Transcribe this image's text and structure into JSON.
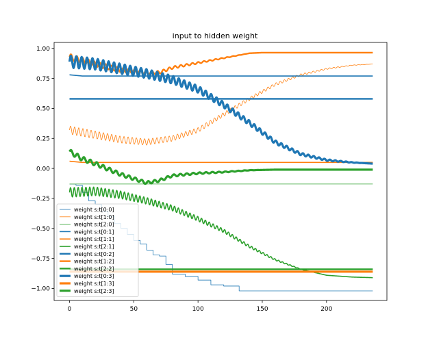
{
  "chart_data": {
    "type": "line",
    "title": "input to hidden weight",
    "xlabel": "",
    "ylabel": "",
    "xlim": [
      -12,
      247
    ],
    "ylim": [
      -1.1,
      1.05
    ],
    "xticks": [
      0,
      50,
      100,
      150,
      200
    ],
    "xtick_labels": [
      "0",
      "50",
      "100",
      "150",
      "200"
    ],
    "yticks": [
      -1.0,
      -0.75,
      -0.5,
      -0.25,
      0.0,
      0.25,
      0.5,
      0.75,
      1.0
    ],
    "ytick_labels": [
      "−1.00",
      "−0.75",
      "−0.50",
      "−0.25",
      "0.00",
      "0.25",
      "0.50",
      "0.75",
      "1.00"
    ],
    "grid": false,
    "legend_position": "lower-left",
    "colors": {
      "blue": "#1f77b4",
      "orange": "#ff7f0e",
      "green": "#2ca02c"
    },
    "series": [
      {
        "name": "weight s:t[0:0]",
        "color": "#1f77b4",
        "width": 0.8,
        "kind": "steps",
        "points": [
          [
            0,
            -0.13
          ],
          [
            5,
            -0.14
          ],
          [
            10,
            -0.2
          ],
          [
            15,
            -0.27
          ],
          [
            20,
            -0.3
          ],
          [
            25,
            -0.36
          ],
          [
            30,
            -0.4
          ],
          [
            35,
            -0.46
          ],
          [
            40,
            -0.5
          ],
          [
            45,
            -0.55
          ],
          [
            50,
            -0.6
          ],
          [
            55,
            -0.63
          ],
          [
            60,
            -0.68
          ],
          [
            65,
            -0.72
          ],
          [
            70,
            -0.73
          ],
          [
            75,
            -0.8
          ],
          [
            80,
            -0.88
          ],
          [
            90,
            -0.9
          ],
          [
            100,
            -0.93
          ],
          [
            110,
            -0.97
          ],
          [
            120,
            -0.98
          ],
          [
            132,
            -1.02
          ],
          [
            236,
            -1.02
          ]
        ]
      },
      {
        "name": "weight s:t[1:0]",
        "color": "#ff7f0e",
        "width": 0.8,
        "kind": "osc",
        "points": [
          [
            0,
            0.32
          ],
          [
            20,
            0.28
          ],
          [
            40,
            0.24
          ],
          [
            60,
            0.22
          ],
          [
            80,
            0.25
          ],
          [
            100,
            0.32
          ],
          [
            120,
            0.45
          ],
          [
            140,
            0.58
          ],
          [
            160,
            0.7
          ],
          [
            180,
            0.78
          ],
          [
            200,
            0.83
          ],
          [
            220,
            0.86
          ],
          [
            236,
            0.87
          ]
        ],
        "amp": 0.035,
        "period": 3.2,
        "damp_until": 236
      },
      {
        "name": "weight s:t[2:0]",
        "color": "#2ca02c",
        "width": 0.8,
        "kind": "line",
        "points": [
          [
            0,
            -0.13
          ],
          [
            236,
            -0.13
          ]
        ]
      },
      {
        "name": "weight s:t[0:1]",
        "color": "#1f77b4",
        "width": 1.6,
        "kind": "line",
        "points": [
          [
            0,
            0.78
          ],
          [
            10,
            0.77
          ],
          [
            236,
            0.77
          ]
        ]
      },
      {
        "name": "weight s:t[1:1]",
        "color": "#ff7f0e",
        "width": 1.6,
        "kind": "line",
        "points": [
          [
            0,
            0.06
          ],
          [
            10,
            0.05
          ],
          [
            236,
            0.05
          ]
        ]
      },
      {
        "name": "weight s:t[2:1]",
        "color": "#2ca02c",
        "width": 1.6,
        "kind": "osc",
        "points": [
          [
            0,
            -0.2
          ],
          [
            20,
            -0.19
          ],
          [
            40,
            -0.22
          ],
          [
            60,
            -0.27
          ],
          [
            80,
            -0.33
          ],
          [
            100,
            -0.42
          ],
          [
            120,
            -0.52
          ],
          [
            140,
            -0.65
          ],
          [
            160,
            -0.76
          ],
          [
            180,
            -0.84
          ],
          [
            200,
            -0.89
          ],
          [
            220,
            -0.905
          ],
          [
            236,
            -0.91
          ]
        ],
        "amp": 0.04,
        "period": 3.0,
        "damp_until": 190
      },
      {
        "name": "weight s:t[0:2]",
        "color": "#1f77b4",
        "width": 2.4,
        "kind": "line",
        "points": [
          [
            0,
            0.58
          ],
          [
            236,
            0.58
          ]
        ]
      },
      {
        "name": "weight s:t[1:2]",
        "color": "#ff7f0e",
        "width": 2.4,
        "kind": "osc",
        "points": [
          [
            0,
            0.93
          ],
          [
            20,
            0.87
          ],
          [
            40,
            0.82
          ],
          [
            60,
            0.8
          ],
          [
            70,
            0.8
          ],
          [
            80,
            0.84
          ],
          [
            90,
            0.86
          ],
          [
            100,
            0.88
          ],
          [
            110,
            0.9
          ],
          [
            120,
            0.92
          ],
          [
            130,
            0.94
          ],
          [
            140,
            0.96
          ],
          [
            150,
            0.965
          ],
          [
            236,
            0.965
          ]
        ],
        "amp": 0.025,
        "period": 4.5,
        "damp_until": 140
      },
      {
        "name": "weight s:t[2:2]",
        "color": "#2ca02c",
        "width": 2.4,
        "kind": "line",
        "points": [
          [
            0,
            -0.84
          ],
          [
            236,
            -0.84
          ]
        ]
      },
      {
        "name": "weight s:t[0:3]",
        "color": "#1f77b4",
        "width": 3.2,
        "kind": "osc",
        "points": [
          [
            0,
            0.89
          ],
          [
            20,
            0.87
          ],
          [
            40,
            0.83
          ],
          [
            60,
            0.79
          ],
          [
            80,
            0.74
          ],
          [
            100,
            0.66
          ],
          [
            120,
            0.53
          ],
          [
            140,
            0.38
          ],
          [
            160,
            0.22
          ],
          [
            180,
            0.12
          ],
          [
            200,
            0.07
          ],
          [
            220,
            0.05
          ],
          [
            236,
            0.04
          ]
        ],
        "amp": 0.05,
        "period": 4.2,
        "damp_until": 230
      },
      {
        "name": "weight s:t[1:3]",
        "color": "#ff7f0e",
        "width": 3.2,
        "kind": "line",
        "points": [
          [
            0,
            -0.86
          ],
          [
            236,
            -0.86
          ]
        ]
      },
      {
        "name": "weight s:t[2:3]",
        "color": "#2ca02c",
        "width": 3.2,
        "kind": "osc",
        "points": [
          [
            0,
            0.14
          ],
          [
            10,
            0.08
          ],
          [
            20,
            0.04
          ],
          [
            40,
            -0.05
          ],
          [
            60,
            -0.12
          ],
          [
            70,
            -0.1
          ],
          [
            80,
            -0.06
          ],
          [
            100,
            -0.04
          ],
          [
            120,
            -0.03
          ],
          [
            140,
            -0.015
          ],
          [
            160,
            -0.01
          ],
          [
            236,
            -0.01
          ]
        ],
        "amp": 0.02,
        "period": 5.0,
        "damp_until": 150
      }
    ]
  }
}
